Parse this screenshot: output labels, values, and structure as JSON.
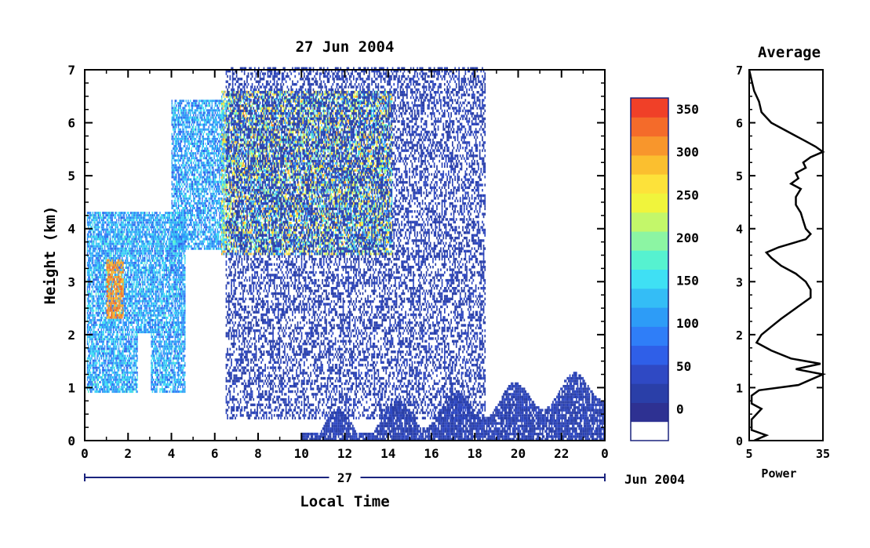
{
  "chart_data": [
    {
      "type": "heatmap",
      "title": "27 Jun 2004",
      "xlabel": "Local Time",
      "ylabel": "Height (km)",
      "xlim": [
        0,
        24
      ],
      "ylim": [
        0,
        7
      ],
      "x_ticks": [
        "0",
        "2",
        "4",
        "6",
        "8",
        "10",
        "12",
        "14",
        "16",
        "18",
        "20",
        "22",
        "0"
      ],
      "y_ticks": [
        "0",
        "1",
        "2",
        "3",
        "4",
        "5",
        "6",
        "7"
      ],
      "date_bar": {
        "label": "27",
        "right_label": "Jun 2004"
      },
      "colorbar": {
        "min": 0,
        "max": 375,
        "tick_labels": [
          "0",
          "50",
          "100",
          "150",
          "200",
          "250",
          "300",
          "350"
        ],
        "tick_values": [
          0,
          50,
          100,
          150,
          200,
          250,
          300,
          350
        ],
        "colors": [
          "#ffffff",
          "#2e3192",
          "#2a3fa8",
          "#2f49c4",
          "#2f5fe8",
          "#2f7ef8",
          "#2d9cf7",
          "#34bdf6",
          "#3fe0f4",
          "#56f2d0",
          "#8cf5a3",
          "#c3f76a",
          "#f0f43c",
          "#fde23a",
          "#fbbf2f",
          "#f8962c",
          "#f46b2a",
          "#f04028"
        ],
        "bands": [
          -25,
          0,
          25,
          50,
          75,
          100,
          125,
          150,
          175,
          200,
          225,
          250,
          275,
          300,
          325,
          350,
          375
        ]
      },
      "regions": [
        {
          "name": "precip-low",
          "x": [
            0.1,
            4.6
          ],
          "y": [
            0.9,
            4.3
          ],
          "values": [
            60,
            180
          ]
        },
        {
          "name": "precip-core",
          "x": [
            1.0,
            1.8
          ],
          "y": [
            2.3,
            3.4
          ],
          "values": [
            300,
            370
          ]
        },
        {
          "name": "cloud-mid",
          "x": [
            4.0,
            6.4
          ],
          "y": [
            3.6,
            6.4
          ],
          "values": [
            50,
            180
          ]
        },
        {
          "name": "cloud-layer",
          "x": [
            6.3,
            14.2
          ],
          "y": [
            3.5,
            6.6
          ],
          "values": [
            80,
            340
          ]
        },
        {
          "name": "noise",
          "x": [
            6.5,
            18.5
          ],
          "y": [
            0.4,
            7.0
          ],
          "values": [
            0,
            40
          ]
        },
        {
          "name": "boundary-layer",
          "x": [
            10.0,
            24.0
          ],
          "y": [
            0.0,
            1.8
          ],
          "values": [
            0,
            40
          ]
        }
      ]
    },
    {
      "type": "line",
      "title": "Average",
      "xlabel": "Power",
      "xlim": [
        5,
        35
      ],
      "ylim": [
        0,
        7
      ],
      "x_ticks": [
        "5",
        "35"
      ],
      "y_ticks": [
        "0",
        "1",
        "2",
        "3",
        "4",
        "5",
        "6",
        "7"
      ],
      "profile": [
        [
          0.0,
          7
        ],
        [
          0.1,
          12
        ],
        [
          0.2,
          6
        ],
        [
          0.4,
          6
        ],
        [
          0.6,
          10
        ],
        [
          0.7,
          6
        ],
        [
          0.85,
          6
        ],
        [
          0.95,
          9
        ],
        [
          1.05,
          25
        ],
        [
          1.15,
          30
        ],
        [
          1.25,
          36
        ],
        [
          1.35,
          24
        ],
        [
          1.45,
          34
        ],
        [
          1.55,
          22
        ],
        [
          1.7,
          14
        ],
        [
          1.85,
          8
        ],
        [
          2.0,
          10
        ],
        [
          2.15,
          14
        ],
        [
          2.3,
          18
        ],
        [
          2.5,
          24
        ],
        [
          2.7,
          30
        ],
        [
          2.85,
          30
        ],
        [
          3.0,
          28
        ],
        [
          3.15,
          24
        ],
        [
          3.3,
          18
        ],
        [
          3.45,
          14
        ],
        [
          3.55,
          12
        ],
        [
          3.65,
          17
        ],
        [
          3.8,
          28
        ],
        [
          3.9,
          30
        ],
        [
          4.0,
          28
        ],
        [
          4.15,
          27
        ],
        [
          4.3,
          26
        ],
        [
          4.45,
          24
        ],
        [
          4.6,
          24
        ],
        [
          4.75,
          26
        ],
        [
          4.85,
          22
        ],
        [
          4.95,
          25
        ],
        [
          5.05,
          24
        ],
        [
          5.15,
          28
        ],
        [
          5.25,
          27
        ],
        [
          5.35,
          30
        ],
        [
          5.45,
          35
        ],
        [
          5.55,
          32
        ],
        [
          5.65,
          28
        ],
        [
          5.8,
          22
        ],
        [
          6.0,
          14
        ],
        [
          6.2,
          10
        ],
        [
          6.4,
          9
        ],
        [
          6.6,
          7
        ],
        [
          6.8,
          6
        ],
        [
          7.0,
          5
        ]
      ]
    }
  ]
}
